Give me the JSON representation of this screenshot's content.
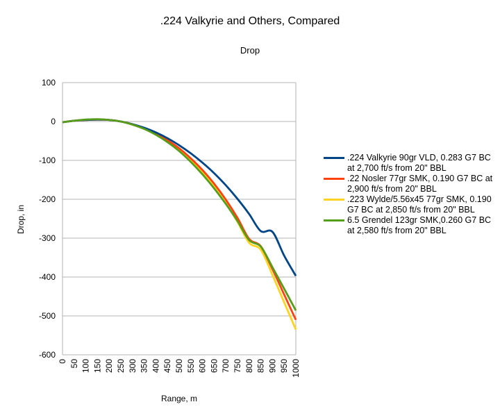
{
  "chart_data": {
    "type": "line",
    "title": ".224 Valkyrie and Others, Compared",
    "subtitle": "Drop",
    "xlabel": "Range, m",
    "ylabel": "Drop, in",
    "xlim": [
      0,
      1000
    ],
    "ylim": [
      -600,
      100
    ],
    "yticks": [
      100,
      0,
      -100,
      -200,
      -300,
      -400,
      -500,
      -600
    ],
    "xticks": [
      0,
      50,
      100,
      150,
      200,
      250,
      300,
      350,
      400,
      450,
      500,
      550,
      600,
      650,
      700,
      750,
      800,
      850,
      900,
      950,
      1000
    ],
    "grid": "horizontal",
    "legend_position": "right",
    "series": [
      {
        "name": ".224 Valkyrie 90gr VLD, 0.283 G7 BC at 2,700 ft/s from 20\" BBL",
        "color": "#004586",
        "x": [
          0,
          50,
          100,
          150,
          200,
          250,
          300,
          350,
          400,
          450,
          500,
          550,
          600,
          650,
          700,
          750,
          800,
          850,
          900,
          950,
          1000
        ],
        "values": [
          -2,
          2,
          4,
          5,
          4,
          0,
          -7,
          -16,
          -28,
          -43,
          -61,
          -82,
          -106,
          -133,
          -164,
          -199,
          -238,
          -282,
          -283.9,
          -345,
          -397
        ]
      },
      {
        "name": ".22 Nosler 77gr SMK, 0.190 G7 BC at 2,900 ft/s from 20\" BBL",
        "color": "#ff420e",
        "x": [
          0,
          50,
          100,
          150,
          200,
          250,
          300,
          350,
          400,
          450,
          500,
          550,
          600,
          650,
          700,
          750,
          800,
          850,
          900,
          950,
          1000
        ],
        "values": [
          -2,
          2,
          4,
          5,
          4,
          0,
          -7,
          -17,
          -31,
          -48,
          -69,
          -95,
          -125,
          -160,
          -201,
          -248,
          -302,
          -321,
          -380,
          -445,
          -510
        ]
      },
      {
        "name": ".223 Wylde/5.56x45 77gr SMK, 0.190 G7 BC at 2,850 ft/s from 20\" BBL",
        "color": "#ffd320",
        "x": [
          0,
          50,
          100,
          150,
          200,
          250,
          300,
          350,
          400,
          450,
          500,
          550,
          600,
          650,
          700,
          750,
          800,
          850,
          900,
          950,
          1000
        ],
        "values": [
          -2,
          2,
          4,
          5,
          4,
          0,
          -8,
          -19,
          -34,
          -52,
          -74,
          -101,
          -132,
          -168,
          -210,
          -258,
          -312,
          -330,
          -395,
          -465,
          -535
        ]
      },
      {
        "name": "6.5 Grendel 123gr SMK,0.260 G7 BC at 2,580 ft/s from 20\" BBL",
        "color": "#579d1c",
        "x": [
          0,
          50,
          100,
          150,
          200,
          250,
          300,
          350,
          400,
          450,
          500,
          550,
          600,
          650,
          700,
          750,
          800,
          850,
          900,
          950,
          1000
        ],
        "values": [
          -2,
          2,
          5,
          6,
          4,
          0,
          -8,
          -19,
          -34,
          -53,
          -76,
          -104,
          -136,
          -172,
          -212,
          -256,
          -305,
          -322,
          -375,
          -430,
          -486
        ]
      }
    ]
  }
}
